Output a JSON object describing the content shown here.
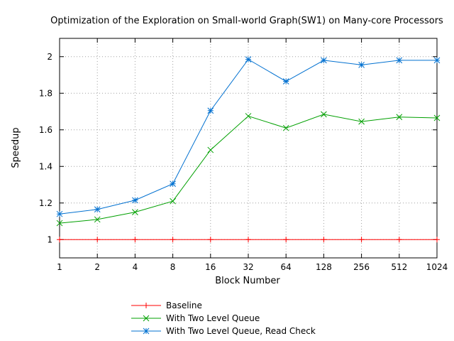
{
  "chart_data": {
    "type": "line",
    "title": "Optimization of the Exploration on Small-world Graph(SW1) on Many-core Processors",
    "xlabel": "Block Number",
    "ylabel": "Speedup",
    "categories": [
      "1",
      "2",
      "4",
      "8",
      "16",
      "32",
      "64",
      "128",
      "256",
      "512",
      "1024"
    ],
    "ylim": [
      0.9,
      2.1
    ],
    "yticks": [
      "1",
      "1.2",
      "1.4",
      "1.6",
      "1.8",
      "2"
    ],
    "grid": true,
    "legend_position": "bottom",
    "series": [
      {
        "name": "Baseline",
        "color": "#ff0000",
        "marker": "plus",
        "values": [
          1,
          1,
          1,
          1,
          1,
          1,
          1,
          1,
          1,
          1,
          1
        ]
      },
      {
        "name": "With Two Level Queue",
        "color": "#00a000",
        "marker": "cross",
        "values": [
          1.09,
          1.11,
          1.15,
          1.21,
          1.49,
          1.675,
          1.61,
          1.685,
          1.645,
          1.67,
          1.665
        ]
      },
      {
        "name": "With Two Level Queue, Read Check",
        "color": "#0070d0",
        "marker": "star",
        "values": [
          1.14,
          1.165,
          1.215,
          1.305,
          1.705,
          1.985,
          1.865,
          1.98,
          1.955,
          1.98,
          1.98
        ]
      }
    ]
  }
}
